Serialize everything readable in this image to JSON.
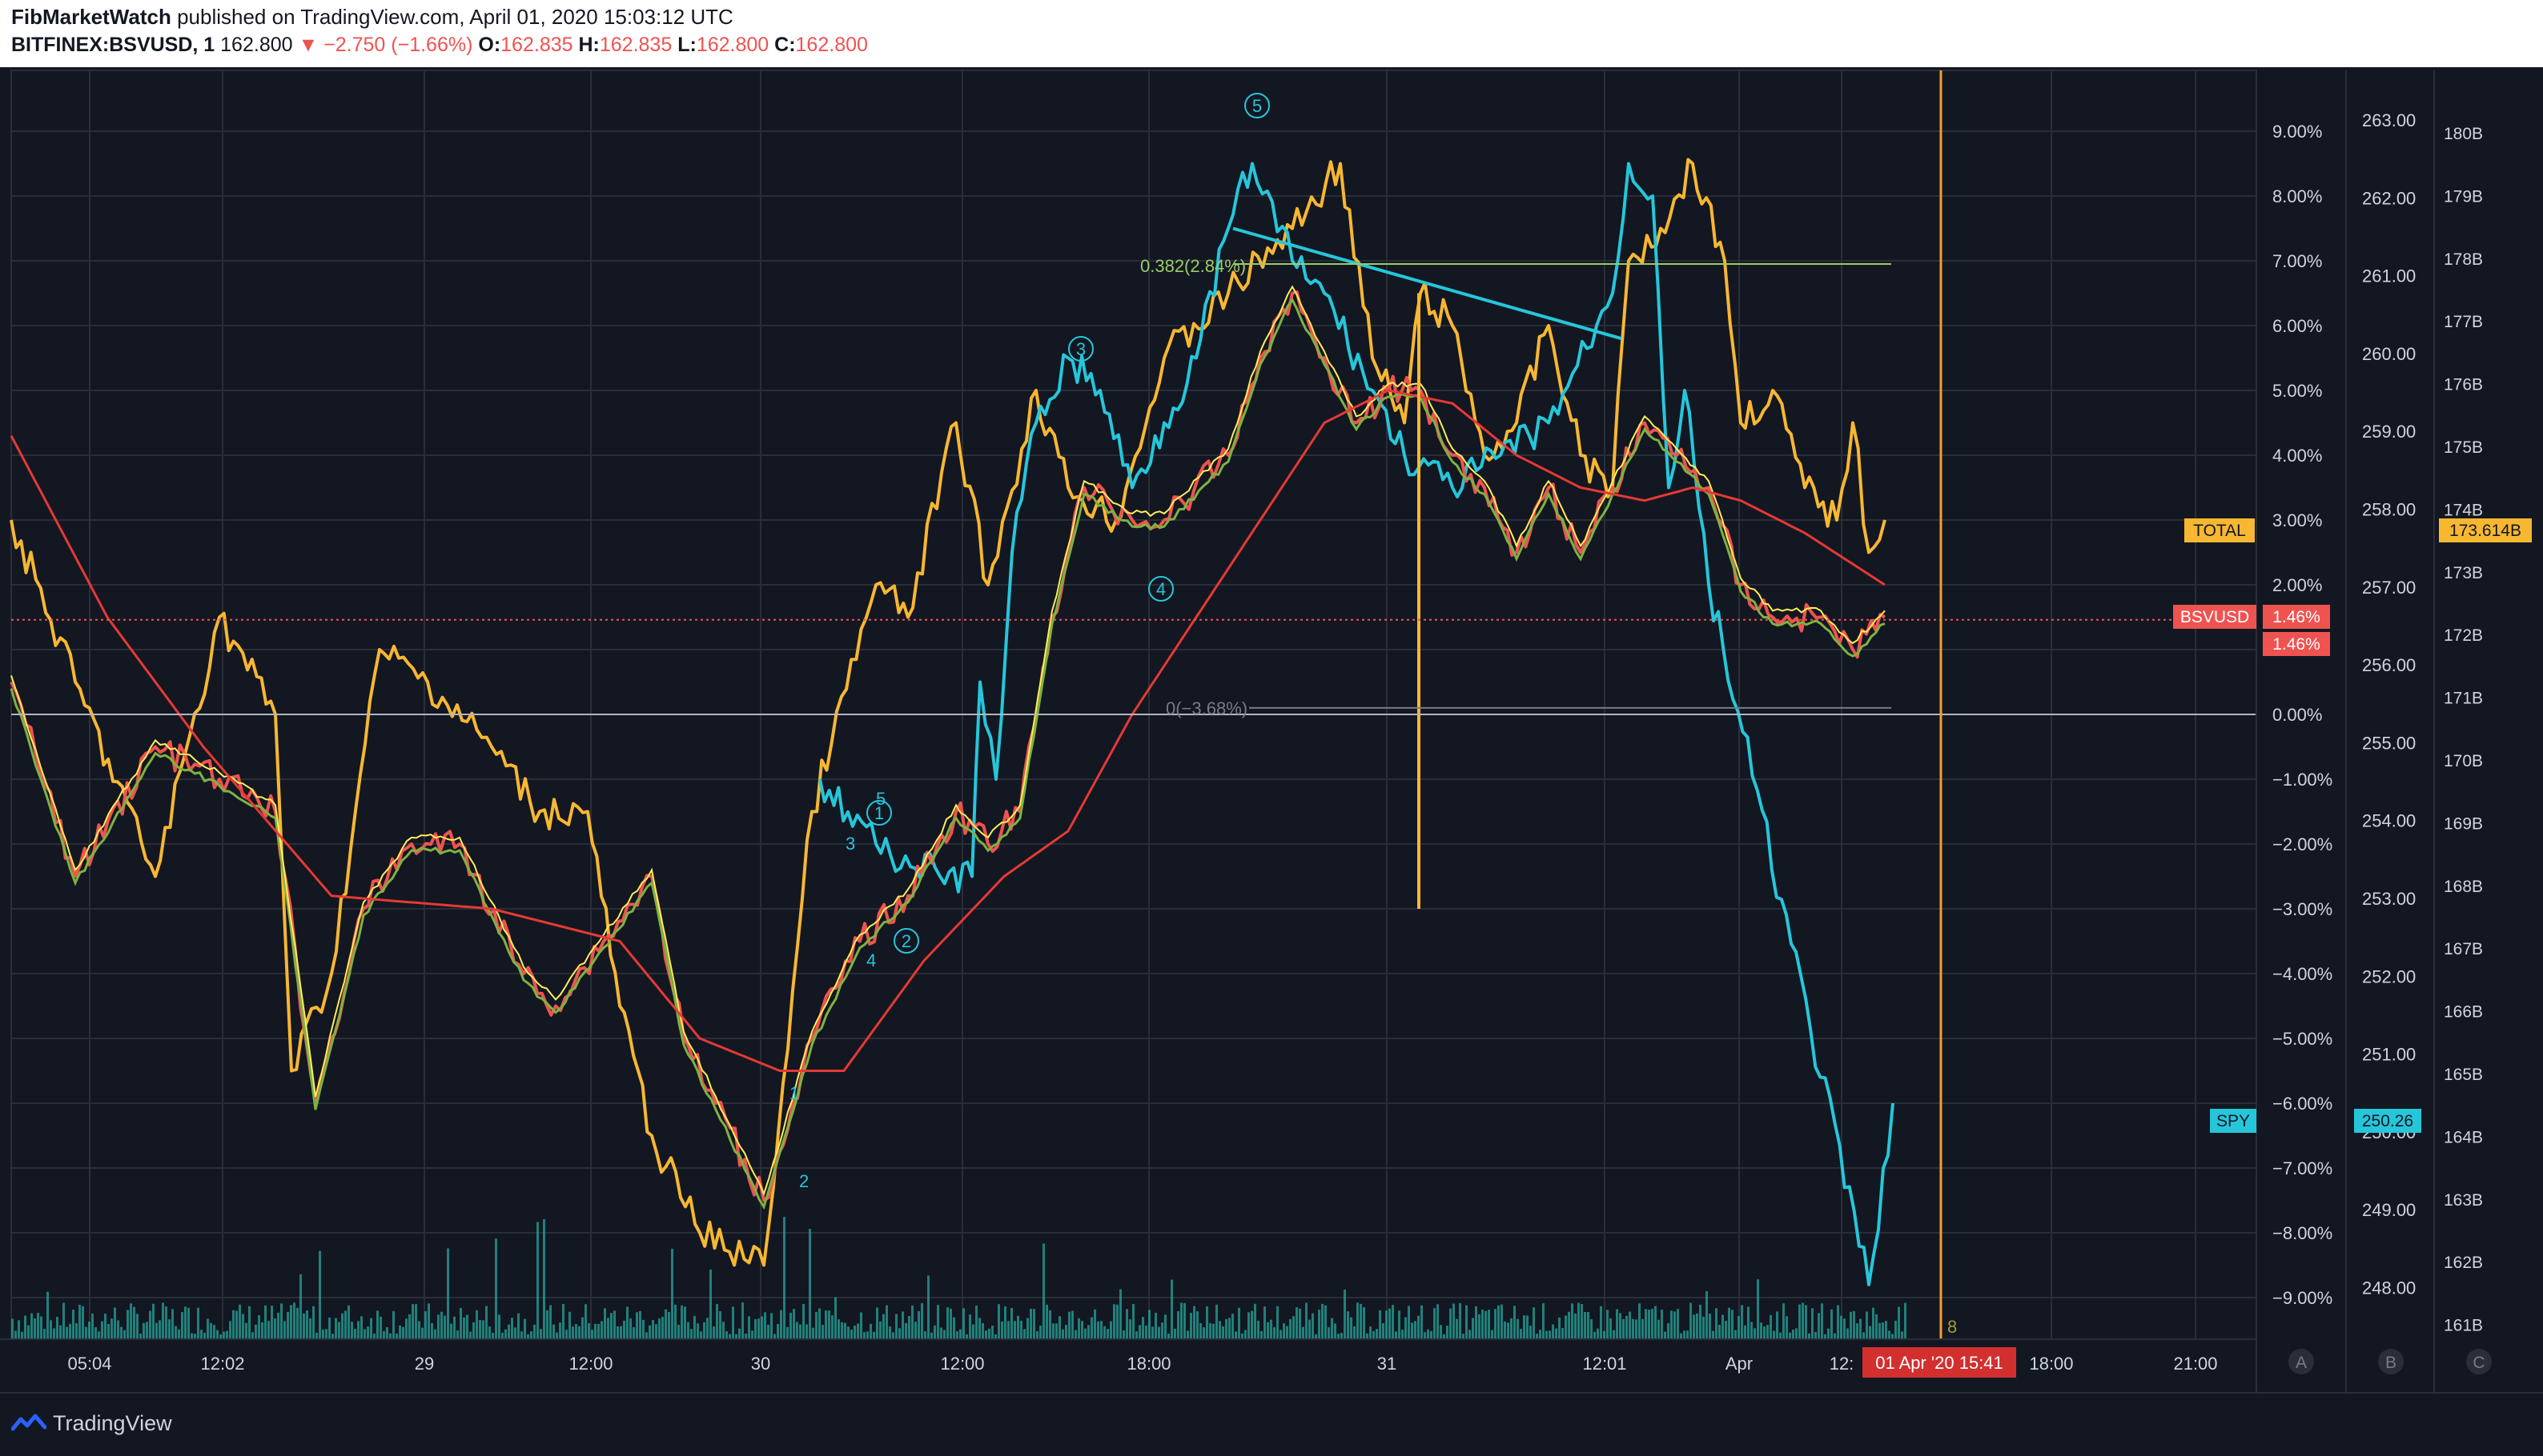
{
  "header": {
    "author": "FibMarketWatch",
    "published": "published on TradingView.com, April 01, 2020 15:03:12 UTC",
    "symbol": "BITFINEX:BSVUSD, 1",
    "last": "162.800",
    "change": "▼ −2.750 (−1.66%)",
    "o_label": "O:",
    "o_value": "162.835",
    "h_label": "H:",
    "h_value": "162.835",
    "l_label": "L:",
    "l_value": "162.800",
    "c_label": "C:",
    "c_value": "162.800"
  },
  "footer": {
    "brand": "TradingView"
  },
  "colors": {
    "background": "#131722",
    "bsv_up": "#26a69a",
    "bsv_down": "#ef5350",
    "total": "#f7b731",
    "spy": "#26c6da",
    "ma_long": "#e53935",
    "ma_mid": "#7cb342",
    "ma_short": "#ffee58",
    "volume": "#26a69a",
    "vline": "#f0a030"
  },
  "chart_data": {
    "type": "line",
    "symbol": "BITFINEX:BSVUSD, 1",
    "x_ticks": [
      "05:04",
      "12:02",
      "29",
      "12:00",
      "30",
      "12:00",
      "18:00",
      "31",
      "12:01",
      "Apr",
      "12:",
      "18:00",
      "21:00"
    ],
    "x_current_label": "01 Apr '20  15:41",
    "percent_axis": {
      "ticks": [
        "9.00%",
        "8.00%",
        "7.00%",
        "6.00%",
        "5.00%",
        "4.00%",
        "3.00%",
        "2.00%",
        "1.00%",
        "0.00%",
        "−1.00%",
        "−2.00%",
        "−3.00%",
        "−4.00%",
        "−5.00%",
        "−6.00%",
        "−7.00%",
        "−8.00%",
        "−9.00%"
      ],
      "range": [
        -9.0,
        9.0
      ]
    },
    "spy_axis": {
      "ticks": [
        "263.00",
        "262.00",
        "261.00",
        "260.00",
        "259.00",
        "258.00",
        "257.00",
        "256.00",
        "255.00",
        "254.00",
        "253.00",
        "252.00",
        "251.00",
        "250.00",
        "249.00",
        "248.00"
      ],
      "range": [
        248.0,
        263.0
      ]
    },
    "total_axis": {
      "ticks": [
        "180B",
        "179B",
        "178B",
        "177B",
        "176B",
        "175B",
        "174B",
        "173B",
        "172B",
        "171B",
        "170B",
        "169B",
        "168B",
        "167B",
        "166B",
        "165B",
        "164B",
        "163B",
        "162B",
        "161B"
      ],
      "range": [
        161,
        180
      ]
    },
    "scale_labels": [
      "A",
      "B",
      "C"
    ],
    "series": [
      {
        "name": "TOTAL",
        "last": "173.614B",
        "points": [
          [
            0,
            3.0
          ],
          [
            40,
            0.5
          ],
          [
            90,
            -2.5
          ],
          [
            130,
            1.5
          ],
          [
            165,
            0.0
          ],
          [
            175,
            -5.5
          ],
          [
            200,
            -4.0
          ],
          [
            230,
            1.0
          ],
          [
            260,
            0.5
          ],
          [
            300,
            -0.5
          ],
          [
            330,
            -1.5
          ],
          [
            360,
            -1.5
          ],
          [
            380,
            -4.5
          ],
          [
            400,
            -6.5
          ],
          [
            430,
            -8.0
          ],
          [
            470,
            -8.5
          ],
          [
            500,
            -1.5
          ],
          [
            540,
            2.0
          ],
          [
            560,
            1.5
          ],
          [
            590,
            4.5
          ],
          [
            610,
            2.0
          ],
          [
            640,
            5.0
          ],
          [
            660,
            3.5
          ],
          [
            690,
            3.0
          ],
          [
            720,
            5.5
          ],
          [
            760,
            6.5
          ],
          [
            800,
            7.5
          ],
          [
            830,
            8.5
          ],
          [
            850,
            5.5
          ],
          [
            870,
            4.5
          ],
          [
            880,
            6.5
          ],
          [
            900,
            6.0
          ],
          [
            920,
            4.0
          ],
          [
            940,
            4.5
          ],
          [
            960,
            6.0
          ],
          [
            980,
            4.0
          ],
          [
            1000,
            3.5
          ],
          [
            1010,
            7.0
          ],
          [
            1030,
            7.5
          ],
          [
            1050,
            8.5
          ],
          [
            1070,
            7.0
          ],
          [
            1080,
            4.5
          ],
          [
            1100,
            5.0
          ],
          [
            1120,
            3.5
          ],
          [
            1140,
            3.0
          ],
          [
            1150,
            4.5
          ],
          [
            1160,
            2.5
          ],
          [
            1170,
            3.0
          ]
        ]
      },
      {
        "name": "SPY",
        "last": "250.26",
        "points": [
          [
            505,
            -1.0
          ],
          [
            540,
            -2.0
          ],
          [
            580,
            -2.5
          ],
          [
            600,
            -2.5
          ],
          [
            605,
            0.5
          ],
          [
            615,
            -1.0
          ],
          [
            625,
            2.5
          ],
          [
            640,
            4.5
          ],
          [
            660,
            5.5
          ],
          [
            680,
            5.0
          ],
          [
            700,
            3.5
          ],
          [
            720,
            4.5
          ],
          [
            740,
            5.5
          ],
          [
            760,
            7.5
          ],
          [
            775,
            8.5
          ],
          [
            800,
            7.0
          ],
          [
            820,
            6.5
          ],
          [
            850,
            5.0
          ],
          [
            870,
            4.0
          ],
          [
            900,
            3.5
          ],
          [
            930,
            4.0
          ],
          [
            960,
            4.5
          ],
          [
            990,
            6.0
          ],
          [
            1000,
            6.5
          ],
          [
            1010,
            8.5
          ],
          [
            1025,
            8.0
          ],
          [
            1035,
            3.5
          ],
          [
            1045,
            5.0
          ],
          [
            1060,
            2.0
          ],
          [
            1160,
            -8.8
          ],
          [
            1175,
            -6.0
          ]
        ]
      },
      {
        "name": "BSVUSD",
        "last": "1.46%",
        "points": [
          [
            0,
            0.5
          ],
          [
            40,
            -2.5
          ],
          [
            90,
            -0.5
          ],
          [
            130,
            -1.0
          ],
          [
            165,
            -1.5
          ],
          [
            190,
            -6.0
          ],
          [
            220,
            -3.0
          ],
          [
            250,
            -2.0
          ],
          [
            280,
            -2.0
          ],
          [
            320,
            -4.0
          ],
          [
            340,
            -4.5
          ],
          [
            370,
            -3.5
          ],
          [
            400,
            -2.5
          ],
          [
            420,
            -5.0
          ],
          [
            440,
            -6.0
          ],
          [
            470,
            -7.5
          ],
          [
            500,
            -5.0
          ],
          [
            530,
            -3.5
          ],
          [
            560,
            -2.8
          ],
          [
            590,
            -1.5
          ],
          [
            610,
            -2.0
          ],
          [
            630,
            -1.5
          ],
          [
            650,
            1.5
          ],
          [
            670,
            3.5
          ],
          [
            700,
            3.0
          ],
          [
            720,
            3.0
          ],
          [
            760,
            4.0
          ],
          [
            780,
            5.5
          ],
          [
            800,
            6.5
          ],
          [
            820,
            5.5
          ],
          [
            840,
            4.5
          ],
          [
            860,
            5.0
          ],
          [
            880,
            5.0
          ],
          [
            900,
            4.0
          ],
          [
            920,
            3.5
          ],
          [
            940,
            2.5
          ],
          [
            960,
            3.5
          ],
          [
            980,
            2.5
          ],
          [
            1000,
            3.5
          ],
          [
            1020,
            4.5
          ],
          [
            1040,
            4.0
          ],
          [
            1060,
            3.5
          ],
          [
            1080,
            2.0
          ],
          [
            1100,
            1.5
          ],
          [
            1130,
            1.5
          ],
          [
            1150,
            1.0
          ],
          [
            1170,
            1.5
          ]
        ]
      },
      {
        "name": "MA long",
        "points": [
          [
            0,
            4.3
          ],
          [
            60,
            1.5
          ],
          [
            120,
            -0.5
          ],
          [
            200,
            -2.8
          ],
          [
            300,
            -3.0
          ],
          [
            380,
            -3.5
          ],
          [
            430,
            -5.0
          ],
          [
            480,
            -5.5
          ],
          [
            520,
            -5.5
          ],
          [
            570,
            -3.8
          ],
          [
            620,
            -2.5
          ],
          [
            660,
            -1.8
          ],
          [
            700,
            0.0
          ],
          [
            740,
            1.5
          ],
          [
            780,
            3.0
          ],
          [
            820,
            4.5
          ],
          [
            860,
            5.0
          ],
          [
            900,
            4.8
          ],
          [
            940,
            4.0
          ],
          [
            980,
            3.5
          ],
          [
            1020,
            3.3
          ],
          [
            1050,
            3.5
          ],
          [
            1080,
            3.3
          ],
          [
            1120,
            2.8
          ],
          [
            1170,
            2.0
          ]
        ]
      }
    ],
    "annotations": {
      "fib_upper": "0.382(2.84%)",
      "fib_lower": "0(−3.68%)",
      "wave_labels_circled": [
        "5",
        "3",
        "4",
        "1",
        "2"
      ],
      "wave_labels_small": [
        "5",
        "3",
        "4",
        "1",
        "2"
      ],
      "bar_count": "8"
    },
    "legend_boxes": [
      "TOTAL",
      "BSVUSD",
      "SPY"
    ],
    "grid": true
  }
}
